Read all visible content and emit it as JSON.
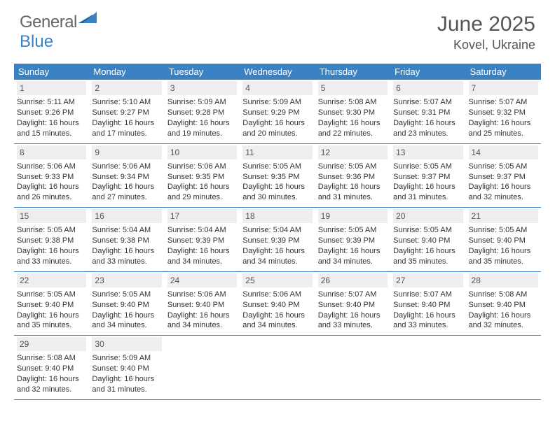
{
  "logo": {
    "text1": "General",
    "text2": "Blue"
  },
  "title": "June 2025",
  "location": "Kovel, Ukraine",
  "colors": {
    "header_bg": "#3b82c4",
    "daynum_bg": "#eeeeee",
    "text": "#333333",
    "title": "#555555"
  },
  "dayNames": [
    "Sunday",
    "Monday",
    "Tuesday",
    "Wednesday",
    "Thursday",
    "Friday",
    "Saturday"
  ],
  "weeks": [
    [
      {
        "n": "1",
        "sr": "5:11 AM",
        "ss": "9:26 PM",
        "d1": "16 hours",
        "d2": "15 minutes."
      },
      {
        "n": "2",
        "sr": "5:10 AM",
        "ss": "9:27 PM",
        "d1": "16 hours",
        "d2": "17 minutes."
      },
      {
        "n": "3",
        "sr": "5:09 AM",
        "ss": "9:28 PM",
        "d1": "16 hours",
        "d2": "19 minutes."
      },
      {
        "n": "4",
        "sr": "5:09 AM",
        "ss": "9:29 PM",
        "d1": "16 hours",
        "d2": "20 minutes."
      },
      {
        "n": "5",
        "sr": "5:08 AM",
        "ss": "9:30 PM",
        "d1": "16 hours",
        "d2": "22 minutes."
      },
      {
        "n": "6",
        "sr": "5:07 AM",
        "ss": "9:31 PM",
        "d1": "16 hours",
        "d2": "23 minutes."
      },
      {
        "n": "7",
        "sr": "5:07 AM",
        "ss": "9:32 PM",
        "d1": "16 hours",
        "d2": "25 minutes."
      }
    ],
    [
      {
        "n": "8",
        "sr": "5:06 AM",
        "ss": "9:33 PM",
        "d1": "16 hours",
        "d2": "26 minutes."
      },
      {
        "n": "9",
        "sr": "5:06 AM",
        "ss": "9:34 PM",
        "d1": "16 hours",
        "d2": "27 minutes."
      },
      {
        "n": "10",
        "sr": "5:06 AM",
        "ss": "9:35 PM",
        "d1": "16 hours",
        "d2": "29 minutes."
      },
      {
        "n": "11",
        "sr": "5:05 AM",
        "ss": "9:35 PM",
        "d1": "16 hours",
        "d2": "30 minutes."
      },
      {
        "n": "12",
        "sr": "5:05 AM",
        "ss": "9:36 PM",
        "d1": "16 hours",
        "d2": "31 minutes."
      },
      {
        "n": "13",
        "sr": "5:05 AM",
        "ss": "9:37 PM",
        "d1": "16 hours",
        "d2": "31 minutes."
      },
      {
        "n": "14",
        "sr": "5:05 AM",
        "ss": "9:37 PM",
        "d1": "16 hours",
        "d2": "32 minutes."
      }
    ],
    [
      {
        "n": "15",
        "sr": "5:05 AM",
        "ss": "9:38 PM",
        "d1": "16 hours",
        "d2": "33 minutes."
      },
      {
        "n": "16",
        "sr": "5:04 AM",
        "ss": "9:38 PM",
        "d1": "16 hours",
        "d2": "33 minutes."
      },
      {
        "n": "17",
        "sr": "5:04 AM",
        "ss": "9:39 PM",
        "d1": "16 hours",
        "d2": "34 minutes."
      },
      {
        "n": "18",
        "sr": "5:04 AM",
        "ss": "9:39 PM",
        "d1": "16 hours",
        "d2": "34 minutes."
      },
      {
        "n": "19",
        "sr": "5:05 AM",
        "ss": "9:39 PM",
        "d1": "16 hours",
        "d2": "34 minutes."
      },
      {
        "n": "20",
        "sr": "5:05 AM",
        "ss": "9:40 PM",
        "d1": "16 hours",
        "d2": "35 minutes."
      },
      {
        "n": "21",
        "sr": "5:05 AM",
        "ss": "9:40 PM",
        "d1": "16 hours",
        "d2": "35 minutes."
      }
    ],
    [
      {
        "n": "22",
        "sr": "5:05 AM",
        "ss": "9:40 PM",
        "d1": "16 hours",
        "d2": "35 minutes."
      },
      {
        "n": "23",
        "sr": "5:05 AM",
        "ss": "9:40 PM",
        "d1": "16 hours",
        "d2": "34 minutes."
      },
      {
        "n": "24",
        "sr": "5:06 AM",
        "ss": "9:40 PM",
        "d1": "16 hours",
        "d2": "34 minutes."
      },
      {
        "n": "25",
        "sr": "5:06 AM",
        "ss": "9:40 PM",
        "d1": "16 hours",
        "d2": "34 minutes."
      },
      {
        "n": "26",
        "sr": "5:07 AM",
        "ss": "9:40 PM",
        "d1": "16 hours",
        "d2": "33 minutes."
      },
      {
        "n": "27",
        "sr": "5:07 AM",
        "ss": "9:40 PM",
        "d1": "16 hours",
        "d2": "33 minutes."
      },
      {
        "n": "28",
        "sr": "5:08 AM",
        "ss": "9:40 PM",
        "d1": "16 hours",
        "d2": "32 minutes."
      }
    ],
    [
      {
        "n": "29",
        "sr": "5:08 AM",
        "ss": "9:40 PM",
        "d1": "16 hours",
        "d2": "32 minutes."
      },
      {
        "n": "30",
        "sr": "5:09 AM",
        "ss": "9:40 PM",
        "d1": "16 hours",
        "d2": "31 minutes."
      },
      null,
      null,
      null,
      null,
      null
    ]
  ],
  "labels": {
    "sunrise": "Sunrise: ",
    "sunset": "Sunset: ",
    "daylight": "Daylight: ",
    "and": "and "
  }
}
